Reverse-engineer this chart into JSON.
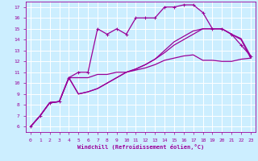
{
  "bg_color": "#cceeff",
  "grid_color": "#aadddd",
  "line_color": "#990099",
  "xlim": [
    -0.5,
    23.5
  ],
  "ylim": [
    5.5,
    17.5
  ],
  "xticks": [
    0,
    1,
    2,
    3,
    4,
    5,
    6,
    7,
    8,
    9,
    10,
    11,
    12,
    13,
    14,
    15,
    16,
    17,
    18,
    19,
    20,
    21,
    22,
    23
  ],
  "yticks": [
    6,
    7,
    8,
    9,
    10,
    11,
    12,
    13,
    14,
    15,
    16,
    17
  ],
  "xlabel": "Windchill (Refroidissement éolien,°C)",
  "line1_x": [
    0,
    1,
    2,
    3,
    4,
    5,
    6,
    7,
    8,
    9,
    10,
    11,
    12,
    13,
    14,
    15,
    16,
    17,
    18,
    19,
    20,
    21,
    22,
    23
  ],
  "line1_y": [
    6,
    7,
    8.2,
    8.3,
    10.5,
    11,
    11,
    15,
    14.5,
    15,
    14.5,
    16,
    16,
    16,
    17,
    17,
    17.2,
    17.2,
    16.5,
    15,
    15,
    14.5,
    13.5,
    12.5
  ],
  "line2_x": [
    0,
    1,
    2,
    3,
    4,
    5,
    6,
    7,
    8,
    9,
    10,
    11,
    12,
    13,
    14,
    15,
    16,
    17,
    18,
    19,
    20,
    21,
    22,
    23
  ],
  "line2_y": [
    6,
    7,
    8.2,
    8.3,
    10.5,
    10.5,
    10.5,
    10.8,
    10.8,
    11,
    11,
    11.2,
    11.4,
    11.7,
    12.1,
    12.3,
    12.5,
    12.6,
    12.1,
    12.1,
    12.0,
    12.0,
    12.2,
    12.3
  ],
  "line3_x": [
    0,
    1,
    2,
    3,
    4,
    5,
    6,
    7,
    8,
    9,
    10,
    11,
    12,
    13,
    14,
    15,
    16,
    17,
    18,
    19,
    20,
    21,
    22,
    23
  ],
  "line3_y": [
    6,
    7,
    8.2,
    8.3,
    10.5,
    9.0,
    9.2,
    9.5,
    10.0,
    10.5,
    11.0,
    11.3,
    11.7,
    12.2,
    12.8,
    13.5,
    14.0,
    14.5,
    15.0,
    15.0,
    15.0,
    14.5,
    14.0,
    12.3
  ],
  "line4_x": [
    0,
    1,
    2,
    3,
    4,
    5,
    6,
    7,
    8,
    9,
    10,
    11,
    12,
    13,
    14,
    15,
    16,
    17,
    18,
    19,
    20,
    21,
    22,
    23
  ],
  "line4_y": [
    6,
    7,
    8.2,
    8.3,
    10.5,
    9.0,
    9.2,
    9.5,
    10.0,
    10.5,
    11.0,
    11.3,
    11.7,
    12.2,
    13.0,
    13.8,
    14.3,
    14.8,
    15.0,
    15.0,
    15.0,
    14.5,
    14.1,
    12.5
  ]
}
